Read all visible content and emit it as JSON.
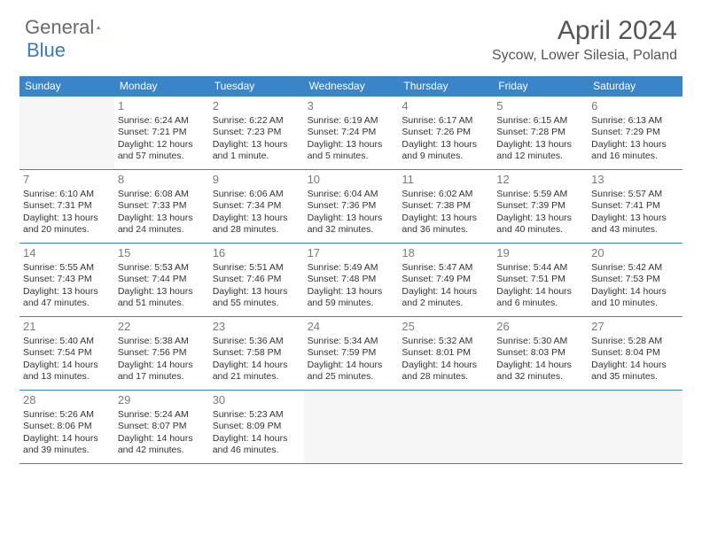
{
  "brand": {
    "general": "General",
    "blue": "Blue"
  },
  "title": "April 2024",
  "location": "Sycow, Lower Silesia, Poland",
  "colors": {
    "header_bg": "#3a85c7",
    "header_text": "#ffffff",
    "logo_gray": "#6a6a6a",
    "logo_blue": "#3a7bbf",
    "title_color": "#555555",
    "cell_text": "#333333",
    "empty_bg": "#f5f5f5"
  },
  "dayHeaders": [
    "Sunday",
    "Monday",
    "Tuesday",
    "Wednesday",
    "Thursday",
    "Friday",
    "Saturday"
  ],
  "weeks": [
    [
      {
        "empty": true
      },
      {
        "n": "1",
        "sr": "Sunrise: 6:24 AM",
        "ss": "Sunset: 7:21 PM",
        "dl": "Daylight: 12 hours and 57 minutes."
      },
      {
        "n": "2",
        "sr": "Sunrise: 6:22 AM",
        "ss": "Sunset: 7:23 PM",
        "dl": "Daylight: 13 hours and 1 minute."
      },
      {
        "n": "3",
        "sr": "Sunrise: 6:19 AM",
        "ss": "Sunset: 7:24 PM",
        "dl": "Daylight: 13 hours and 5 minutes."
      },
      {
        "n": "4",
        "sr": "Sunrise: 6:17 AM",
        "ss": "Sunset: 7:26 PM",
        "dl": "Daylight: 13 hours and 9 minutes."
      },
      {
        "n": "5",
        "sr": "Sunrise: 6:15 AM",
        "ss": "Sunset: 7:28 PM",
        "dl": "Daylight: 13 hours and 12 minutes."
      },
      {
        "n": "6",
        "sr": "Sunrise: 6:13 AM",
        "ss": "Sunset: 7:29 PM",
        "dl": "Daylight: 13 hours and 16 minutes."
      }
    ],
    [
      {
        "n": "7",
        "sr": "Sunrise: 6:10 AM",
        "ss": "Sunset: 7:31 PM",
        "dl": "Daylight: 13 hours and 20 minutes."
      },
      {
        "n": "8",
        "sr": "Sunrise: 6:08 AM",
        "ss": "Sunset: 7:33 PM",
        "dl": "Daylight: 13 hours and 24 minutes."
      },
      {
        "n": "9",
        "sr": "Sunrise: 6:06 AM",
        "ss": "Sunset: 7:34 PM",
        "dl": "Daylight: 13 hours and 28 minutes."
      },
      {
        "n": "10",
        "sr": "Sunrise: 6:04 AM",
        "ss": "Sunset: 7:36 PM",
        "dl": "Daylight: 13 hours and 32 minutes."
      },
      {
        "n": "11",
        "sr": "Sunrise: 6:02 AM",
        "ss": "Sunset: 7:38 PM",
        "dl": "Daylight: 13 hours and 36 minutes."
      },
      {
        "n": "12",
        "sr": "Sunrise: 5:59 AM",
        "ss": "Sunset: 7:39 PM",
        "dl": "Daylight: 13 hours and 40 minutes."
      },
      {
        "n": "13",
        "sr": "Sunrise: 5:57 AM",
        "ss": "Sunset: 7:41 PM",
        "dl": "Daylight: 13 hours and 43 minutes."
      }
    ],
    [
      {
        "n": "14",
        "sr": "Sunrise: 5:55 AM",
        "ss": "Sunset: 7:43 PM",
        "dl": "Daylight: 13 hours and 47 minutes."
      },
      {
        "n": "15",
        "sr": "Sunrise: 5:53 AM",
        "ss": "Sunset: 7:44 PM",
        "dl": "Daylight: 13 hours and 51 minutes."
      },
      {
        "n": "16",
        "sr": "Sunrise: 5:51 AM",
        "ss": "Sunset: 7:46 PM",
        "dl": "Daylight: 13 hours and 55 minutes."
      },
      {
        "n": "17",
        "sr": "Sunrise: 5:49 AM",
        "ss": "Sunset: 7:48 PM",
        "dl": "Daylight: 13 hours and 59 minutes."
      },
      {
        "n": "18",
        "sr": "Sunrise: 5:47 AM",
        "ss": "Sunset: 7:49 PM",
        "dl": "Daylight: 14 hours and 2 minutes."
      },
      {
        "n": "19",
        "sr": "Sunrise: 5:44 AM",
        "ss": "Sunset: 7:51 PM",
        "dl": "Daylight: 14 hours and 6 minutes."
      },
      {
        "n": "20",
        "sr": "Sunrise: 5:42 AM",
        "ss": "Sunset: 7:53 PM",
        "dl": "Daylight: 14 hours and 10 minutes."
      }
    ],
    [
      {
        "n": "21",
        "sr": "Sunrise: 5:40 AM",
        "ss": "Sunset: 7:54 PM",
        "dl": "Daylight: 14 hours and 13 minutes."
      },
      {
        "n": "22",
        "sr": "Sunrise: 5:38 AM",
        "ss": "Sunset: 7:56 PM",
        "dl": "Daylight: 14 hours and 17 minutes."
      },
      {
        "n": "23",
        "sr": "Sunrise: 5:36 AM",
        "ss": "Sunset: 7:58 PM",
        "dl": "Daylight: 14 hours and 21 minutes."
      },
      {
        "n": "24",
        "sr": "Sunrise: 5:34 AM",
        "ss": "Sunset: 7:59 PM",
        "dl": "Daylight: 14 hours and 25 minutes."
      },
      {
        "n": "25",
        "sr": "Sunrise: 5:32 AM",
        "ss": "Sunset: 8:01 PM",
        "dl": "Daylight: 14 hours and 28 minutes."
      },
      {
        "n": "26",
        "sr": "Sunrise: 5:30 AM",
        "ss": "Sunset: 8:03 PM",
        "dl": "Daylight: 14 hours and 32 minutes."
      },
      {
        "n": "27",
        "sr": "Sunrise: 5:28 AM",
        "ss": "Sunset: 8:04 PM",
        "dl": "Daylight: 14 hours and 35 minutes."
      }
    ],
    [
      {
        "n": "28",
        "sr": "Sunrise: 5:26 AM",
        "ss": "Sunset: 8:06 PM",
        "dl": "Daylight: 14 hours and 39 minutes."
      },
      {
        "n": "29",
        "sr": "Sunrise: 5:24 AM",
        "ss": "Sunset: 8:07 PM",
        "dl": "Daylight: 14 hours and 42 minutes."
      },
      {
        "n": "30",
        "sr": "Sunrise: 5:23 AM",
        "ss": "Sunset: 8:09 PM",
        "dl": "Daylight: 14 hours and 46 minutes."
      },
      {
        "empty": true
      },
      {
        "empty": true
      },
      {
        "empty": true
      },
      {
        "empty": true
      }
    ]
  ]
}
